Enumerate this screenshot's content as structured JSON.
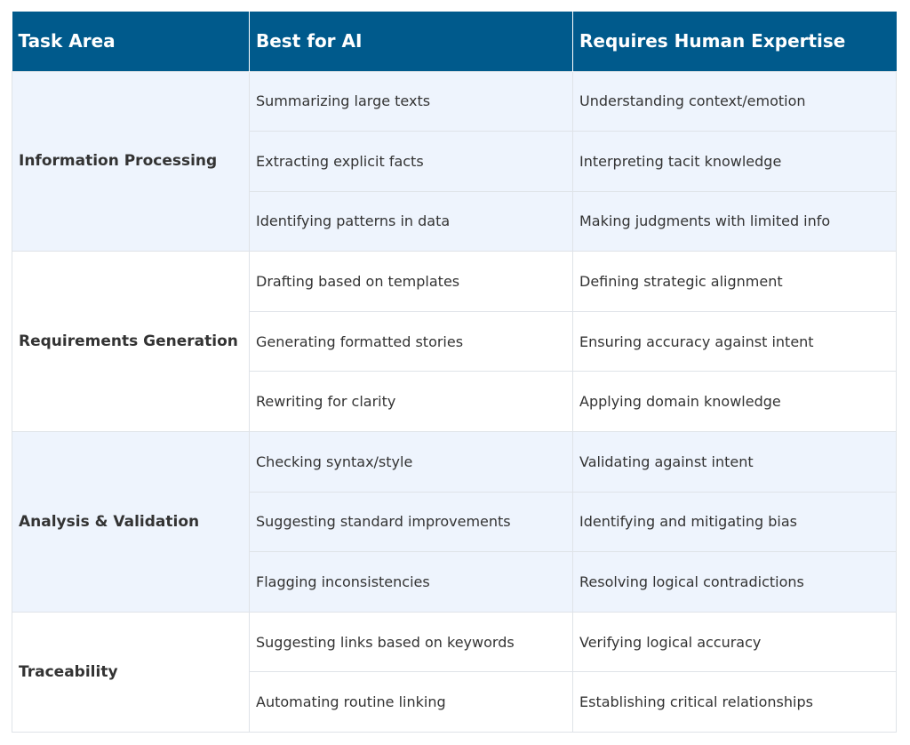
{
  "table": {
    "headers": [
      "Task Area",
      "Best for AI",
      "Requires Human Expertise"
    ],
    "groups": [
      {
        "area": "Information Processing",
        "rows": [
          {
            "ai": "Summarizing large texts",
            "human": "Understanding context/emotion"
          },
          {
            "ai": "Extracting explicit facts",
            "human": "Interpreting tacit knowledge"
          },
          {
            "ai": "Identifying patterns in data",
            "human": "Making judgments with limited info"
          }
        ]
      },
      {
        "area": "Requirements Generation",
        "rows": [
          {
            "ai": "Drafting based on templates",
            "human": "Defining strategic alignment"
          },
          {
            "ai": "Generating formatted stories",
            "human": "Ensuring accuracy against intent"
          },
          {
            "ai": "Rewriting for clarity",
            "human": "Applying domain knowledge"
          }
        ]
      },
      {
        "area": "Analysis & Validation",
        "rows": [
          {
            "ai": "Checking syntax/style",
            "human": "Validating against intent"
          },
          {
            "ai": "Suggesting standard improvements",
            "human": "Identifying and mitigating bias"
          },
          {
            "ai": "Flagging inconsistencies",
            "human": "Resolving logical contradictions"
          }
        ]
      },
      {
        "area": "Traceability",
        "rows": [
          {
            "ai": "Suggesting links based on keywords",
            "human": "Verifying logical accuracy"
          },
          {
            "ai": "Automating routine linking",
            "human": "Establishing critical relationships"
          }
        ]
      }
    ]
  },
  "colors": {
    "header_bg": "#005a8c",
    "shaded_row_bg": "#eef4fd",
    "border": "#dfe3e8"
  }
}
